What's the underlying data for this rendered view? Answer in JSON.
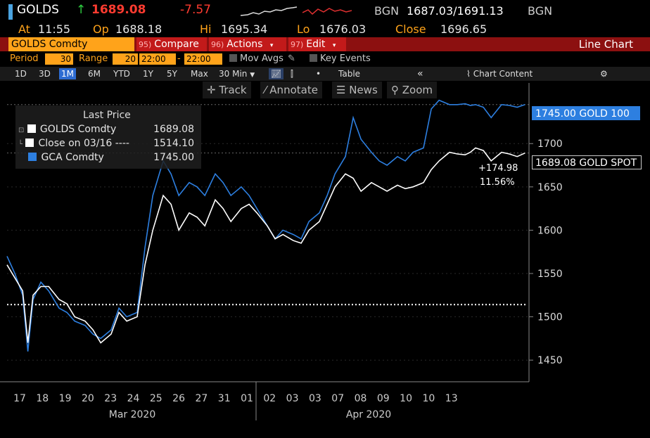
{
  "header": {
    "ticker": "GOLDS",
    "arrow": "↑",
    "last": "1689.08",
    "change": "-7.57",
    "source1": "BGN",
    "bid_ask": "1687.03/1691.13",
    "source2": "BGN"
  },
  "stats": {
    "at_label": "At",
    "at_value": "11:55",
    "op_label": "Op",
    "op_value": "1688.18",
    "hi_label": "Hi",
    "hi_value": "1695.34",
    "lo_label": "Lo",
    "lo_value": "1676.03",
    "close_label": "Close",
    "close_value": "1696.65"
  },
  "menubar": {
    "security": "GOLDS Comdty",
    "compare_num": "95)",
    "compare": "Compare",
    "actions_num": "96)",
    "actions": "Actions",
    "edit_num": "97)",
    "edit": "Edit",
    "chart_type": "Line Chart"
  },
  "period": {
    "period_label": "Period",
    "period_value": "30",
    "range_label": "Range",
    "range_value": "20",
    "from": "22:00",
    "dash": "-",
    "to": "22:00",
    "mov_avgs": "Mov Avgs",
    "key_events": "Key Events"
  },
  "timeframes": [
    "1D",
    "3D",
    "1M",
    "6M",
    "YTD",
    "1Y",
    "5Y",
    "Max"
  ],
  "active_timeframe": "1M",
  "interval": "30 Min",
  "table_label": "Table",
  "chart_content_label": "Chart Content",
  "tools": {
    "track": "Track",
    "annotate": "Annotate",
    "news": "News",
    "zoom": "Zoom"
  },
  "legend": {
    "title": "Last Price",
    "rows": [
      {
        "name": "GOLDS Comdty",
        "value": "1689.08",
        "color": "#ffffff"
      },
      {
        "name": "Close on 03/16 ----",
        "value": "1514.10",
        "color": "#ffffff"
      },
      {
        "name": "GCA Comdty",
        "value": "1745.00",
        "color": "#2d7fe0"
      }
    ]
  },
  "annotations": {
    "gold100_tag": "1745.00 GOLD 100",
    "spot_tag": "1689.08 GOLD SPOT",
    "abs_change": "+174.98",
    "pct_change": "11.56%"
  },
  "colors": {
    "accent_orange": "#ffa31a",
    "menu_red": "#8c1010",
    "blue_series": "#2d7fe0",
    "spot_series": "#ffffff"
  },
  "chart_data": {
    "type": "line",
    "x_tick_labels": [
      "17",
      "18",
      "19",
      "20",
      "23",
      "24",
      "25",
      "26",
      "27",
      "31",
      "01",
      "02",
      "03",
      "03",
      "07",
      "08",
      "09",
      "10",
      "10",
      "13"
    ],
    "month_labels": [
      "Mar 2020",
      "Apr 2020"
    ],
    "y_ticks": [
      1450,
      1500,
      1550,
      1600,
      1650,
      1700
    ],
    "ylim": [
      1425,
      1770
    ],
    "reference_line": 1514.1,
    "series": [
      {
        "name": "GOLDS Comdty",
        "color": "#ffffff",
        "x": [
          0,
          0.3,
          0.6,
          0.8,
          1,
          1.3,
          1.6,
          2,
          2.3,
          2.6,
          3,
          3.3,
          3.6,
          4,
          4.3,
          4.6,
          5,
          5.3,
          5.6,
          6,
          6.3,
          6.6,
          7,
          7.3,
          7.6,
          8,
          8.3,
          8.6,
          9,
          9.3,
          9.6,
          10,
          10.3,
          10.6,
          11,
          11.3,
          11.6,
          12,
          12.3,
          12.6,
          13,
          13.3,
          13.6,
          14,
          14.3,
          14.6,
          15,
          15.3,
          15.6,
          16,
          16.3,
          16.6,
          17,
          17.3,
          17.6,
          17.8,
          18,
          18.3,
          18.6,
          19,
          19.3,
          19.6,
          19.9
        ],
        "y": [
          1560,
          1545,
          1530,
          1470,
          1525,
          1535,
          1535,
          1520,
          1515,
          1500,
          1495,
          1485,
          1470,
          1480,
          1505,
          1495,
          1500,
          1560,
          1600,
          1640,
          1630,
          1600,
          1620,
          1615,
          1605,
          1635,
          1625,
          1610,
          1625,
          1630,
          1620,
          1605,
          1590,
          1595,
          1588,
          1585,
          1600,
          1610,
          1630,
          1650,
          1665,
          1660,
          1645,
          1655,
          1650,
          1645,
          1652,
          1648,
          1650,
          1655,
          1670,
          1680,
          1690,
          1688,
          1687,
          1690,
          1695,
          1692,
          1680,
          1690,
          1688,
          1685,
          1689.08
        ]
      },
      {
        "name": "GCA Comdty",
        "color": "#2d7fe0",
        "x": [
          0,
          0.3,
          0.6,
          0.8,
          1,
          1.3,
          1.6,
          2,
          2.3,
          2.6,
          3,
          3.3,
          3.6,
          4,
          4.3,
          4.6,
          5,
          5.3,
          5.6,
          6,
          6.3,
          6.6,
          7,
          7.3,
          7.6,
          8,
          8.3,
          8.6,
          9,
          9.3,
          9.6,
          10,
          10.3,
          10.6,
          11,
          11.3,
          11.6,
          12,
          12.3,
          12.6,
          13,
          13.3,
          13.6,
          14,
          14.3,
          14.6,
          15,
          15.3,
          15.6,
          16,
          16.3,
          16.6,
          17,
          17.3,
          17.6,
          17.8,
          18,
          18.3,
          18.6,
          19,
          19.3,
          19.6,
          19.9
        ],
        "y": [
          1570,
          1550,
          1525,
          1460,
          1520,
          1540,
          1530,
          1510,
          1505,
          1495,
          1490,
          1480,
          1475,
          1485,
          1510,
          1500,
          1505,
          1580,
          1640,
          1680,
          1665,
          1640,
          1655,
          1650,
          1640,
          1665,
          1655,
          1640,
          1650,
          1640,
          1625,
          1605,
          1590,
          1600,
          1595,
          1590,
          1610,
          1620,
          1640,
          1665,
          1685,
          1730,
          1705,
          1690,
          1680,
          1675,
          1685,
          1680,
          1690,
          1695,
          1740,
          1750,
          1745,
          1745,
          1746,
          1744,
          1745,
          1742,
          1730,
          1745,
          1744,
          1742,
          1745
        ]
      }
    ]
  }
}
